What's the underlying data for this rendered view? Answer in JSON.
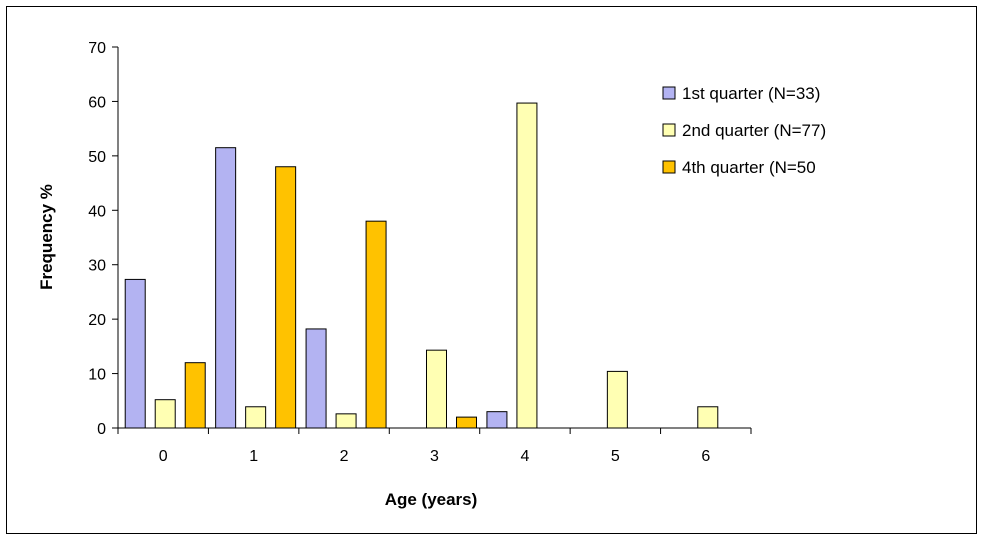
{
  "chart_data": {
    "type": "bar",
    "categories": [
      "0",
      "1",
      "2",
      "3",
      "4",
      "5",
      "6"
    ],
    "series": [
      {
        "name": "1st quarter (N=33)",
        "color": "#b3b3f2",
        "values": [
          27.3,
          51.5,
          18.2,
          0,
          3.0,
          0,
          0
        ]
      },
      {
        "name": "2nd quarter (N=77)",
        "color": "#ffffb3",
        "values": [
          5.2,
          3.9,
          2.6,
          14.3,
          59.7,
          10.4,
          3.9
        ]
      },
      {
        "name": "4th quarter (N=50",
        "color": "#ffc200",
        "values": [
          12.0,
          48.0,
          38.0,
          2.0,
          0,
          0,
          0
        ]
      }
    ],
    "xlabel": "Age (years)",
    "ylabel": "Frequency %",
    "ylim": [
      0,
      70
    ],
    "yticks": [
      0,
      10,
      20,
      30,
      40,
      50,
      60,
      70
    ],
    "grid": false,
    "legend_position": "right"
  }
}
